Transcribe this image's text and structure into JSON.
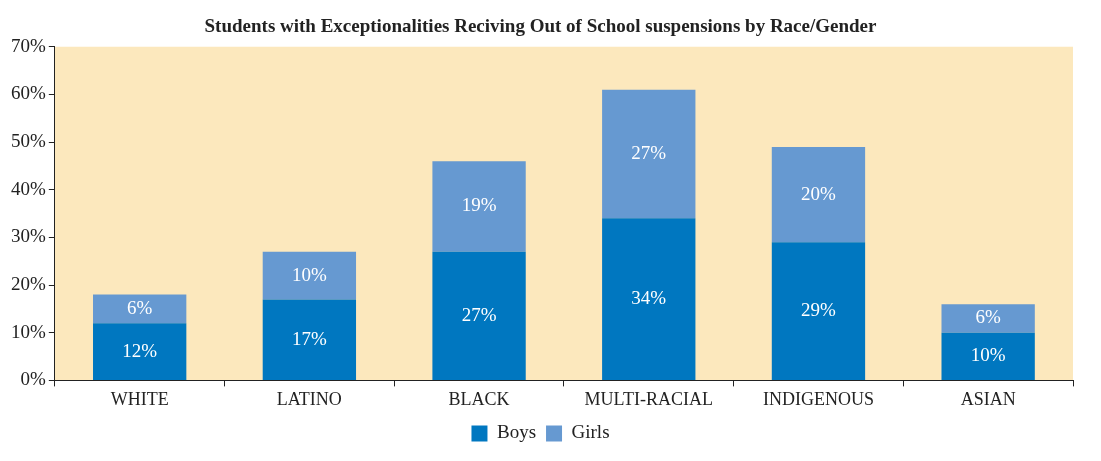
{
  "chart_data": {
    "type": "bar",
    "title": "Students with Exceptionalities Reciving Out of School suspensions by Race/Gender",
    "categories": [
      "WHITE",
      "LATINO",
      "BLACK",
      "MULTI-RACIAL",
      "INDIGENOUS",
      "ASIAN"
    ],
    "stacked": true,
    "series": [
      {
        "name": "Boys",
        "color": "#0077c0",
        "values": [
          12,
          17,
          27,
          34,
          29,
          10
        ],
        "value_labels": [
          "12%",
          "17%",
          "27%",
          "34%",
          "29%",
          "10%"
        ]
      },
      {
        "name": "Girls",
        "color": "#6699d1",
        "values": [
          6,
          10,
          19,
          27,
          20,
          6
        ],
        "value_labels": [
          "6%",
          "10%",
          "19%",
          "27%",
          "20%",
          "6%"
        ]
      }
    ],
    "ylim": [
      0,
      70
    ],
    "yticks": [
      {
        "value": 0,
        "label": "0%"
      },
      {
        "value": 10,
        "label": "10%"
      },
      {
        "value": 20,
        "label": "20%"
      },
      {
        "value": 30,
        "label": "30%"
      },
      {
        "value": 40,
        "label": "40%"
      },
      {
        "value": 50,
        "label": "50%"
      },
      {
        "value": 60,
        "label": "60%"
      },
      {
        "value": 70,
        "label": "70%"
      }
    ],
    "grid": false,
    "legend": "bottom"
  }
}
